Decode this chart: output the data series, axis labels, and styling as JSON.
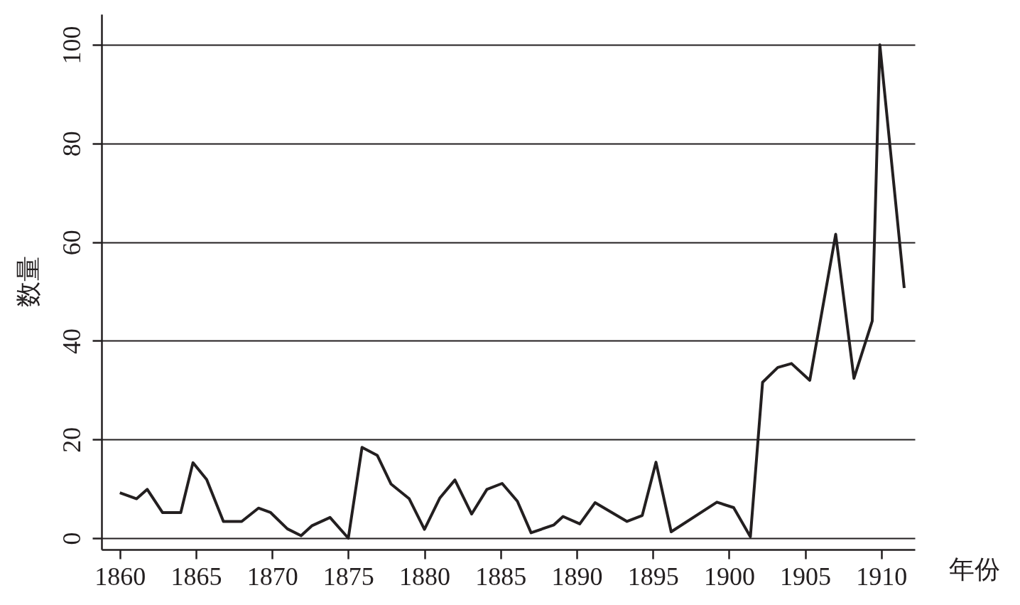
{
  "chart_data": {
    "type": "line",
    "xlabel": "年份",
    "ylabel": "数量",
    "x": [
      1860,
      1861.1,
      1861.8,
      1862.8,
      1864,
      1864.8,
      1865.7,
      1866.8,
      1868,
      1869.1,
      1869.9,
      1871,
      1871.9,
      1872.6,
      1873.8,
      1875,
      1875.9,
      1876.9,
      1877.8,
      1879,
      1880,
      1881,
      1882,
      1883.1,
      1884.1,
      1885.1,
      1886.1,
      1887,
      1888.5,
      1889.1,
      1890.2,
      1891.2,
      1893.3,
      1894.3,
      1895.2,
      1896.2,
      1899.2,
      1900.3,
      1901.4,
      1902.2,
      1903.2,
      1904.1,
      1905.3,
      1907,
      1908.2,
      1909.4,
      1909.9,
      1911.5
    ],
    "series": [
      {
        "color": "#231f20",
        "values": [
          9.2,
          8.0,
          9.9,
          5.2,
          5.2,
          15.3,
          11.9,
          3.4,
          3.4,
          6.1,
          5.2,
          1.9,
          0.5,
          2.5,
          4.2,
          0,
          18.4,
          16.8,
          11,
          8,
          1.8,
          8.1,
          11.8,
          4.9,
          9.9,
          11.1,
          7.5,
          1.1,
          2.7,
          4.4,
          2.9,
          7.2,
          3.4,
          4.6,
          15.4,
          1.3,
          7.3,
          6.2,
          0.3,
          31.6,
          34.6,
          35.4,
          32,
          61.6,
          32.4,
          44,
          100,
          50.7
        ]
      }
    ],
    "xlim": [
      1858.8,
      1912.2
    ],
    "xticks": [
      1860,
      1865,
      1870,
      1875,
      1880,
      1885,
      1890,
      1895,
      1900,
      1905,
      1910
    ],
    "ylim": [
      -2.3,
      106.2
    ],
    "yticks": [
      0,
      20,
      40,
      60,
      80,
      100
    ],
    "grid": "y",
    "line_style": "solid"
  }
}
